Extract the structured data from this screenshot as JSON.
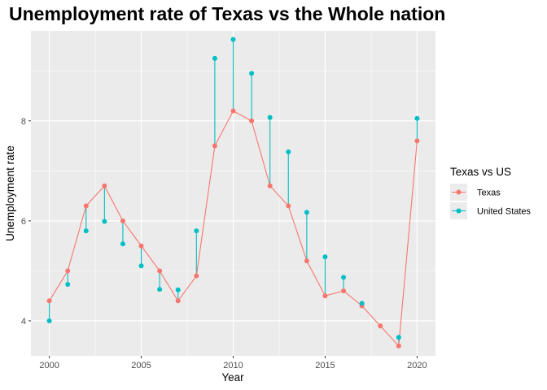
{
  "chart_data": {
    "type": "line",
    "title": "Unemployment rate of Texas vs the Whole nation",
    "xlabel": "Year",
    "ylabel": "Unemployment rate",
    "xlim": [
      1999,
      2021
    ],
    "ylim": [
      3.3,
      9.8
    ],
    "x_ticks": [
      2000,
      2005,
      2010,
      2015,
      2020
    ],
    "y_ticks": [
      4,
      6,
      8
    ],
    "x_tick_labels": [
      "2000",
      "2005",
      "2010",
      "2015",
      "2020"
    ],
    "y_tick_labels": [
      "4",
      "6",
      "8"
    ],
    "grid": true,
    "legend_title": "Texas vs US",
    "legend_position": "right",
    "x": [
      2000,
      2001,
      2002,
      2003,
      2004,
      2005,
      2006,
      2007,
      2008,
      2009,
      2010,
      2011,
      2012,
      2013,
      2014,
      2015,
      2016,
      2017,
      2018,
      2019,
      2020
    ],
    "series": [
      {
        "name": "Texas",
        "color": "#F8766D",
        "values": [
          4.4,
          5.0,
          6.3,
          6.7,
          6.0,
          5.5,
          5.0,
          4.4,
          4.9,
          7.5,
          8.2,
          8.0,
          6.7,
          6.3,
          5.2,
          4.5,
          4.6,
          4.3,
          3.9,
          3.5,
          7.6
        ]
      },
      {
        "name": "United States",
        "color": "#00BFC4",
        "values": [
          4.0,
          4.73,
          5.8,
          5.99,
          5.54,
          5.1,
          4.63,
          4.62,
          5.8,
          9.25,
          9.63,
          8.95,
          8.07,
          7.38,
          6.17,
          5.28,
          4.87,
          4.35,
          null,
          3.67,
          8.05
        ]
      }
    ]
  }
}
